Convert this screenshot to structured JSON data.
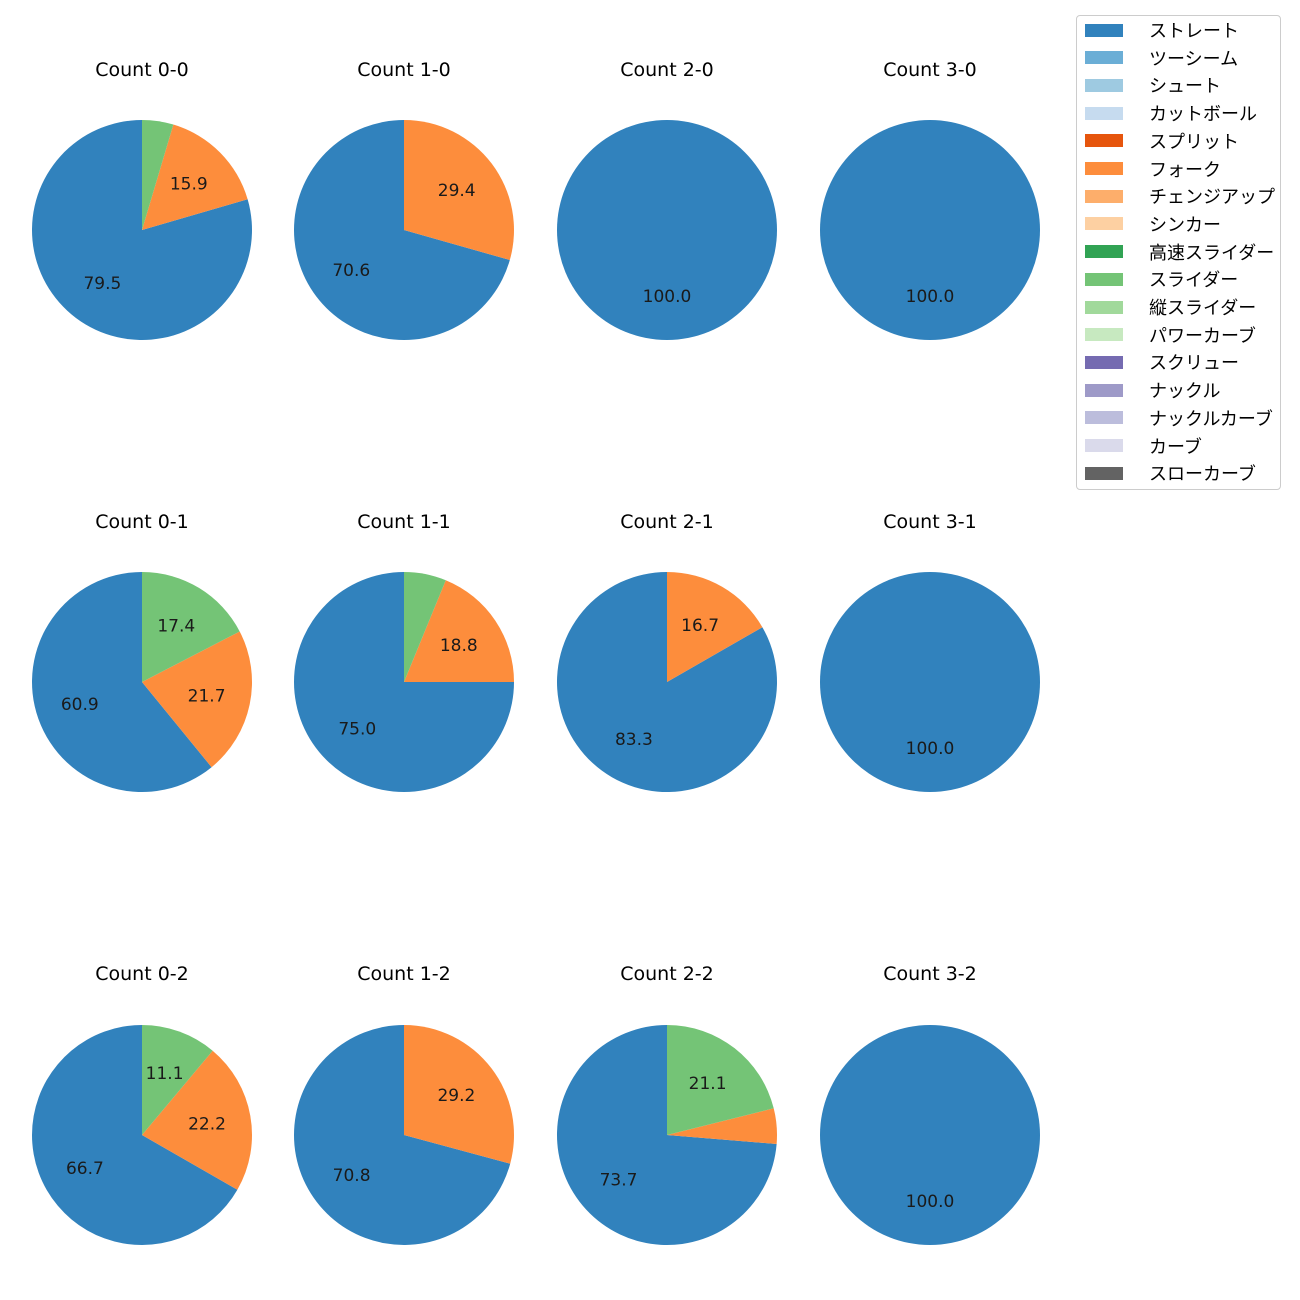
{
  "chart_data": {
    "type": "pie",
    "legend": {
      "placement": "top-right",
      "entries": [
        {
          "name": "ストレート",
          "color": "#3182bd"
        },
        {
          "name": "ツーシーム",
          "color": "#6baed6"
        },
        {
          "name": "シュート",
          "color": "#9ecae1"
        },
        {
          "name": "カットボール",
          "color": "#c6dbef"
        },
        {
          "name": "スプリット",
          "color": "#e6550d"
        },
        {
          "name": "フォーク",
          "color": "#fd8d3c"
        },
        {
          "name": "チェンジアップ",
          "color": "#fdae6b"
        },
        {
          "name": "シンカー",
          "color": "#fdd0a2"
        },
        {
          "name": "高速スライダー",
          "color": "#31a354"
        },
        {
          "name": "スライダー",
          "color": "#74c476"
        },
        {
          "name": "縦スライダー",
          "color": "#a1d99b"
        },
        {
          "name": "パワーカーブ",
          "color": "#c7e9c0"
        },
        {
          "name": "スクリュー",
          "color": "#756bb1"
        },
        {
          "name": "ナックル",
          "color": "#9e9ac8"
        },
        {
          "name": "ナックルカーブ",
          "color": "#bcbddc"
        },
        {
          "name": "カーブ",
          "color": "#dadaeb"
        },
        {
          "name": "スローカーブ",
          "color": "#636363"
        }
      ]
    },
    "charts": [
      {
        "title": "Count 0-0",
        "slices": [
          {
            "pitch": "ストレート",
            "value": 79.5,
            "label": "79.5"
          },
          {
            "pitch": "フォーク",
            "value": 15.9,
            "label": "15.9"
          },
          {
            "pitch": "スライダー",
            "value": 4.6,
            "label": ""
          }
        ]
      },
      {
        "title": "Count 1-0",
        "slices": [
          {
            "pitch": "ストレート",
            "value": 70.6,
            "label": "70.6"
          },
          {
            "pitch": "フォーク",
            "value": 29.4,
            "label": "29.4"
          }
        ]
      },
      {
        "title": "Count 2-0",
        "slices": [
          {
            "pitch": "ストレート",
            "value": 100.0,
            "label": "100.0"
          }
        ]
      },
      {
        "title": "Count 3-0",
        "slices": [
          {
            "pitch": "ストレート",
            "value": 100.0,
            "label": "100.0"
          }
        ]
      },
      {
        "title": "Count 0-1",
        "slices": [
          {
            "pitch": "ストレート",
            "value": 60.9,
            "label": "60.9"
          },
          {
            "pitch": "フォーク",
            "value": 21.7,
            "label": "21.7"
          },
          {
            "pitch": "スライダー",
            "value": 17.4,
            "label": "17.4"
          }
        ]
      },
      {
        "title": "Count 1-1",
        "slices": [
          {
            "pitch": "ストレート",
            "value": 75.0,
            "label": "75.0"
          },
          {
            "pitch": "フォーク",
            "value": 18.8,
            "label": "18.8"
          },
          {
            "pitch": "スライダー",
            "value": 6.2,
            "label": ""
          }
        ]
      },
      {
        "title": "Count 2-1",
        "slices": [
          {
            "pitch": "ストレート",
            "value": 83.3,
            "label": "83.3"
          },
          {
            "pitch": "フォーク",
            "value": 16.7,
            "label": "16.7"
          }
        ]
      },
      {
        "title": "Count 3-1",
        "slices": [
          {
            "pitch": "ストレート",
            "value": 100.0,
            "label": "100.0"
          }
        ]
      },
      {
        "title": "Count 0-2",
        "slices": [
          {
            "pitch": "ストレート",
            "value": 66.7,
            "label": "66.7"
          },
          {
            "pitch": "フォーク",
            "value": 22.2,
            "label": "22.2"
          },
          {
            "pitch": "スライダー",
            "value": 11.1,
            "label": "11.1"
          }
        ]
      },
      {
        "title": "Count 1-2",
        "slices": [
          {
            "pitch": "ストレート",
            "value": 70.8,
            "label": "70.8"
          },
          {
            "pitch": "フォーク",
            "value": 29.2,
            "label": "29.2"
          }
        ]
      },
      {
        "title": "Count 2-2",
        "slices": [
          {
            "pitch": "ストレート",
            "value": 73.7,
            "label": "73.7"
          },
          {
            "pitch": "フォーク",
            "value": 5.2,
            "label": ""
          },
          {
            "pitch": "スライダー",
            "value": 21.1,
            "label": "21.1"
          }
        ]
      },
      {
        "title": "Count 3-2",
        "slices": [
          {
            "pitch": "ストレート",
            "value": 100.0,
            "label": "100.0"
          }
        ]
      }
    ]
  }
}
